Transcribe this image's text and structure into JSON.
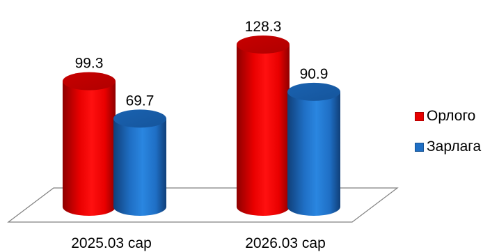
{
  "chart_data": {
    "type": "bar",
    "categories": [
      "2025.03 сар",
      "2026.03 сар"
    ],
    "series": [
      {
        "name": "Орлого",
        "values": [
          99.3,
          128.3
        ],
        "color": "#e80000"
      },
      {
        "name": "Зарлага",
        "values": [
          69.7,
          90.9
        ],
        "color": "#1f6fc5"
      }
    ],
    "title": "",
    "xlabel": "",
    "ylabel": "",
    "ylim": [
      0,
      140
    ],
    "style": "3d-cylinder",
    "grid": false,
    "legend_position": "right"
  }
}
